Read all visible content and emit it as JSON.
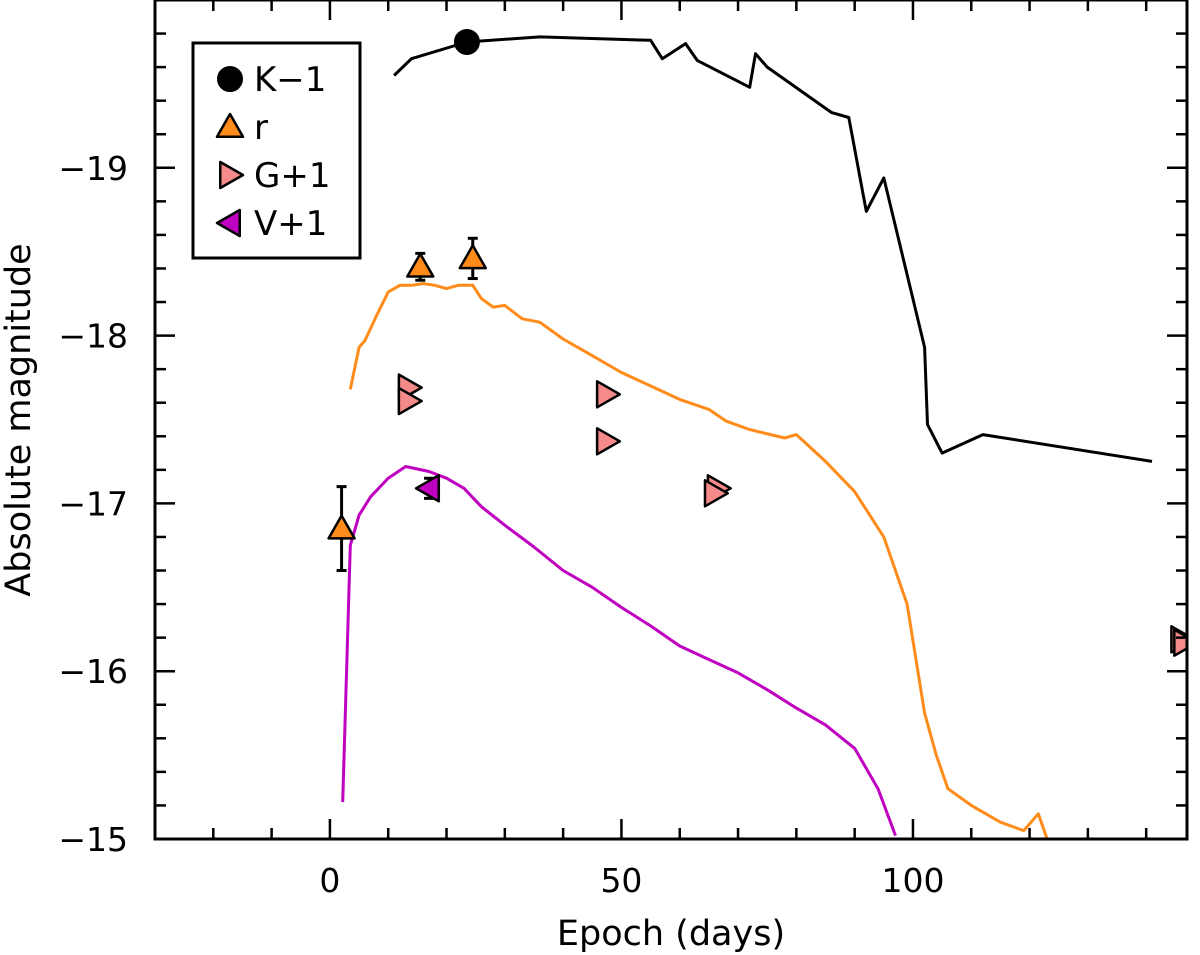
{
  "chart_data": {
    "type": "scatter",
    "title": "",
    "xlabel": "Epoch (days)",
    "ylabel": "Absolute magnitude",
    "xlim": [
      -30,
      147
    ],
    "ylim": [
      -15,
      -20
    ],
    "y_inverted": true,
    "x_ticks": [
      0,
      50,
      100
    ],
    "x_tick_labels": [
      "0",
      "50",
      "100"
    ],
    "y_ticks": [
      -19,
      -18,
      -17,
      -16,
      -15
    ],
    "y_tick_labels": [
      "−19",
      "−18",
      "−17",
      "−16",
      "−15"
    ],
    "legend_position": "top-left",
    "colors": {
      "K-1": "#000000",
      "r": "#ff8c1a",
      "G+1": "#f48a8a",
      "V+1": "#c000c0",
      "axis": "#000000"
    },
    "series": [
      {
        "name": "K−1",
        "band": "K-1",
        "kind": "points",
        "marker": "circle",
        "points": [
          {
            "x": 23.5,
            "y": -19.75
          }
        ]
      },
      {
        "name": "r",
        "band": "r",
        "kind": "points",
        "marker": "triangle-up",
        "points": [
          {
            "x": 2.0,
            "y": -16.85,
            "yerr": 0.25
          },
          {
            "x": 15.5,
            "y": -18.41,
            "yerr": 0.08
          },
          {
            "x": 24.5,
            "y": -18.46,
            "yerr": 0.12
          }
        ]
      },
      {
        "name": "G+1",
        "band": "G+1",
        "kind": "points",
        "marker": "triangle-right",
        "points": [
          {
            "x": 13.5,
            "y": -17.69
          },
          {
            "x": 13.5,
            "y": -17.61
          },
          {
            "x": 47.5,
            "y": -17.65
          },
          {
            "x": 47.5,
            "y": -17.37
          },
          {
            "x": 66.5,
            "y": -17.09
          },
          {
            "x": 66.0,
            "y": -17.06
          },
          {
            "x": 146.0,
            "y": -16.19
          },
          {
            "x": 146.5,
            "y": -16.17
          }
        ]
      },
      {
        "name": "V+1",
        "band": "V+1",
        "kind": "points",
        "marker": "triangle-left",
        "points": [
          {
            "x": 17.0,
            "y": -17.09,
            "yerr": 0.06
          }
        ]
      },
      {
        "name": "K−1 template",
        "band": "K-1",
        "kind": "line",
        "points": [
          [
            11,
            -19.55
          ],
          [
            14,
            -19.65
          ],
          [
            23.5,
            -19.75
          ],
          [
            36,
            -19.78
          ],
          [
            55,
            -19.76
          ],
          [
            57,
            -19.65
          ],
          [
            61,
            -19.74
          ],
          [
            63,
            -19.64
          ],
          [
            72,
            -19.48
          ],
          [
            73,
            -19.68
          ],
          [
            75,
            -19.6
          ],
          [
            86,
            -19.33
          ],
          [
            89,
            -19.3
          ],
          [
            92,
            -18.74
          ],
          [
            95,
            -18.94
          ],
          [
            102,
            -17.93
          ],
          [
            102.5,
            -17.47
          ],
          [
            105,
            -17.3
          ],
          [
            112,
            -17.41
          ],
          [
            141,
            -17.25
          ]
        ]
      },
      {
        "name": "r template",
        "band": "r",
        "kind": "line",
        "points": [
          [
            3.5,
            -17.68
          ],
          [
            5,
            -17.93
          ],
          [
            6,
            -17.97
          ],
          [
            8,
            -18.12
          ],
          [
            10,
            -18.26
          ],
          [
            12,
            -18.3
          ],
          [
            14,
            -18.3
          ],
          [
            16,
            -18.31
          ],
          [
            18,
            -18.3
          ],
          [
            20,
            -18.28
          ],
          [
            22,
            -18.3
          ],
          [
            24.5,
            -18.3
          ],
          [
            26,
            -18.22
          ],
          [
            28,
            -18.17
          ],
          [
            30,
            -18.18
          ],
          [
            33,
            -18.1
          ],
          [
            36,
            -18.08
          ],
          [
            40,
            -17.98
          ],
          [
            45,
            -17.88
          ],
          [
            50,
            -17.78
          ],
          [
            55,
            -17.7
          ],
          [
            60,
            -17.62
          ],
          [
            65,
            -17.56
          ],
          [
            68,
            -17.49
          ],
          [
            72,
            -17.44
          ],
          [
            78,
            -17.39
          ],
          [
            80,
            -17.41
          ],
          [
            85,
            -17.25
          ],
          [
            90,
            -17.07
          ],
          [
            95,
            -16.8
          ],
          [
            99,
            -16.4
          ],
          [
            102,
            -15.75
          ],
          [
            104,
            -15.5
          ],
          [
            106,
            -15.3
          ],
          [
            110,
            -15.2
          ],
          [
            115,
            -15.1
          ],
          [
            119,
            -15.05
          ],
          [
            121.5,
            -15.15
          ],
          [
            123,
            -15.0
          ]
        ]
      },
      {
        "name": "V+1 template",
        "band": "V+1",
        "kind": "line",
        "points": [
          [
            2.2,
            -15.22
          ],
          [
            3.5,
            -16.75
          ],
          [
            5,
            -16.93
          ],
          [
            7,
            -17.04
          ],
          [
            10,
            -17.15
          ],
          [
            13,
            -17.22
          ],
          [
            17,
            -17.19
          ],
          [
            20,
            -17.15
          ],
          [
            23,
            -17.09
          ],
          [
            26,
            -16.98
          ],
          [
            30,
            -16.87
          ],
          [
            35,
            -16.74
          ],
          [
            40,
            -16.6
          ],
          [
            45,
            -16.5
          ],
          [
            50,
            -16.38
          ],
          [
            55,
            -16.27
          ],
          [
            60,
            -16.15
          ],
          [
            65,
            -16.07
          ],
          [
            70,
            -15.99
          ],
          [
            75,
            -15.89
          ],
          [
            80,
            -15.78
          ],
          [
            85,
            -15.68
          ],
          [
            90,
            -15.54
          ],
          [
            94,
            -15.3
          ],
          [
            97,
            -15.02
          ]
        ]
      }
    ]
  }
}
